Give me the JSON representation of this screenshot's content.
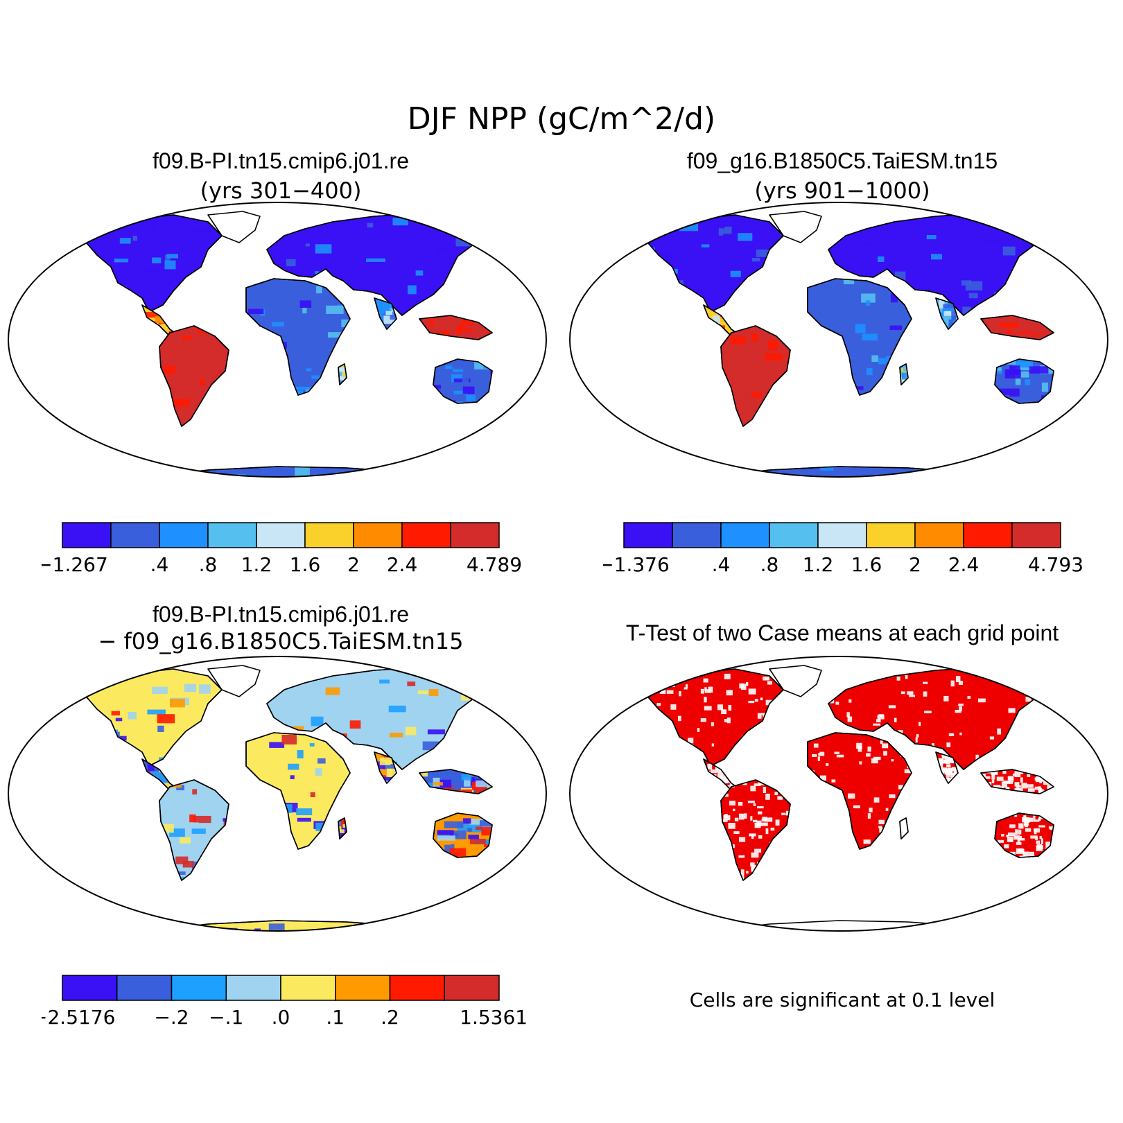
{
  "figure": {
    "title": "DJF NPP (gC/m^2/d)"
  },
  "panels": [
    {
      "title": "f09.B-PI.tn15.cmip6.j01.re",
      "subtitle": "(yrs 301−400)",
      "colorbar": {
        "colors": [
          "#3a10f5",
          "#3a5fdc",
          "#1e90ff",
          "#55bff0",
          "#c8e6f5",
          "#fad02a",
          "#ff8c00",
          "#ff1a00",
          "#d42b2b"
        ],
        "labels": [
          "−1.267",
          ".4",
          ".8",
          "1.2",
          "1.6",
          "2",
          "2.4",
          "4.789"
        ]
      }
    },
    {
      "title": "f09_g16.B1850C5.TaiESM.tn15",
      "subtitle": "(yrs 901−1000)",
      "colorbar": {
        "colors": [
          "#3a10f5",
          "#3a5fdc",
          "#1e90ff",
          "#55bff0",
          "#c8e6f5",
          "#fad02a",
          "#ff8c00",
          "#ff1a00",
          "#d42b2b"
        ],
        "labels": [
          "−1.376",
          ".4",
          ".8",
          "1.2",
          "1.6",
          "2",
          "2.4",
          "4.793"
        ]
      }
    },
    {
      "title": "f09.B-PI.tn15.cmip6.j01.re",
      "subtitle": "− f09_g16.B1850C5.TaiESM.tn15",
      "colorbar": {
        "colors": [
          "#3a10f5",
          "#3a5fdc",
          "#1ea0ff",
          "#9fd3f0",
          "#fbea60",
          "#ff9a00",
          "#ff1a00",
          "#d42b2b"
        ],
        "labels": [
          "−2.5176",
          "−.2",
          "−.1",
          ".0",
          ".1",
          ".2",
          "1.5361"
        ]
      }
    },
    {
      "title": "T-Test of two Case means at each grid point",
      "note": "Cells are significant at 0.1 level",
      "colors": {
        "significant": "#ee0000"
      }
    }
  ]
}
